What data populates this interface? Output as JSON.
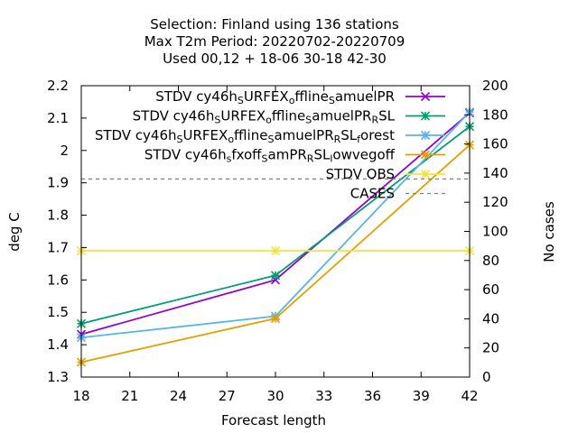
{
  "chart_data": {
    "type": "line",
    "title_lines": [
      "Selection: Finland using   136 stations",
      "Max T2m   Period: 20220702-20220709",
      "Used  00,12  + 18-06 30-18 42-30"
    ],
    "xlabel": "Forecast length",
    "ylabel": "deg C",
    "y2label": "No cases",
    "xlim": [
      18,
      42
    ],
    "ylim": [
      1.3,
      2.2
    ],
    "y2lim": [
      0,
      200
    ],
    "xticks": [
      18,
      21,
      24,
      27,
      30,
      33,
      36,
      39,
      42
    ],
    "yticks": [
      "1.3",
      "1.4",
      "1.5",
      "1.6",
      "1.7",
      "1.8",
      "1.9",
      "2",
      "2.1",
      "2.2"
    ],
    "y2ticks": [
      0,
      20,
      40,
      60,
      80,
      100,
      120,
      140,
      160,
      180,
      200
    ],
    "legend_position": "top-right",
    "series": [
      {
        "legend": [
          [
            "STDV cy46h"
          ],
          [
            "S",
            "sub"
          ],
          [
            "URFEX"
          ],
          [
            "o",
            "sub"
          ],
          [
            "ffline"
          ],
          [
            "S",
            "sub"
          ],
          [
            "amuelPR"
          ]
        ],
        "color": "#9400d3",
        "marker": "x",
        "x": [
          18,
          30,
          42
        ],
        "y": [
          1.432,
          1.6,
          2.116
        ]
      },
      {
        "legend": [
          [
            "STDV cy46h"
          ],
          [
            "S",
            "sub"
          ],
          [
            "URFEX"
          ],
          [
            "o",
            "sub"
          ],
          [
            "ffline"
          ],
          [
            "S",
            "sub"
          ],
          [
            "amuelPR"
          ],
          [
            "R",
            "sub"
          ],
          [
            "SL"
          ]
        ],
        "color": "#009e73",
        "marker": "star",
        "x": [
          18,
          30,
          42
        ],
        "y": [
          1.465,
          1.614,
          2.074
        ]
      },
      {
        "legend": [
          [
            "STDV cy46h"
          ],
          [
            "S",
            "sub"
          ],
          [
            "URFEX"
          ],
          [
            "o",
            "sub"
          ],
          [
            "ffline"
          ],
          [
            "S",
            "sub"
          ],
          [
            "amuelPR"
          ],
          [
            "R",
            "sub"
          ],
          [
            "SL"
          ],
          [
            "f",
            "sub"
          ],
          [
            "orest"
          ]
        ],
        "color": "#56b4e9",
        "marker": "star",
        "x": [
          18,
          30,
          42
        ],
        "y": [
          1.422,
          1.488,
          2.119
        ]
      },
      {
        "legend": [
          [
            "STDV cy46h"
          ],
          [
            "s",
            "sub"
          ],
          [
            "fxoff"
          ],
          [
            "S",
            "sub"
          ],
          [
            "amPR"
          ],
          [
            "R",
            "sub"
          ],
          [
            "SL"
          ],
          [
            "l",
            "sub"
          ],
          [
            "owvegoff"
          ]
        ],
        "color": "#e69f00",
        "marker": "star",
        "x": [
          18,
          30,
          42
        ],
        "y": [
          1.346,
          1.481,
          2.017
        ]
      },
      {
        "legend": [
          [
            "STDV OBS"
          ]
        ],
        "color": "#f0e442",
        "marker": "star",
        "x": [
          18,
          30,
          42
        ],
        "y": [
          1.69,
          1.69,
          1.69
        ]
      },
      {
        "legend": [
          [
            "CASES"
          ]
        ],
        "color": "#808080",
        "dashed": true,
        "axis": "y2",
        "x": [
          18,
          42
        ],
        "y": [
          136,
          136
        ]
      }
    ]
  }
}
